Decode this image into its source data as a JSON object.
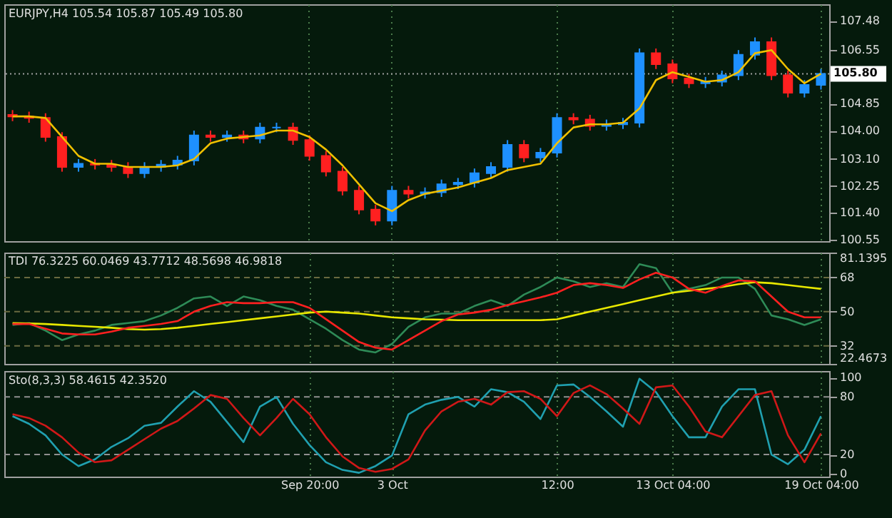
{
  "chart_data": [
    {
      "type": "candlestick",
      "title": "EURJPY,H4  105.54 105.87 105.49 105.80",
      "tick_labels": "y",
      "grid": "x",
      "categories": [
        null,
        null,
        null,
        null,
        null,
        null,
        null,
        null,
        null,
        null,
        null,
        null,
        null,
        null,
        null,
        null,
        null,
        null,
        null,
        null,
        null,
        null,
        null,
        null,
        null,
        null,
        null,
        null,
        null,
        null,
        null,
        null,
        null,
        null,
        null,
        null,
        null,
        null,
        null,
        null,
        null,
        null,
        null,
        null,
        null,
        null,
        null,
        null,
        null,
        null
      ],
      "ohlc": [
        [
          104.5,
          104.65,
          104.3,
          104.45
        ],
        [
          104.45,
          104.6,
          104.25,
          104.4
        ],
        [
          104.4,
          104.55,
          103.65,
          103.8
        ],
        [
          103.8,
          103.95,
          102.7,
          102.85
        ],
        [
          102.85,
          103.1,
          102.7,
          102.95
        ],
        [
          102.95,
          103.1,
          102.77,
          102.92
        ],
        [
          102.92,
          103.07,
          102.7,
          102.85
        ],
        [
          102.85,
          103.0,
          102.5,
          102.65
        ],
        [
          102.65,
          103.0,
          102.5,
          102.85
        ],
        [
          102.85,
          103.07,
          102.7,
          102.92
        ],
        [
          102.92,
          103.2,
          102.77,
          103.05
        ],
        [
          103.05,
          104.0,
          102.9,
          103.85
        ],
        [
          103.85,
          104.0,
          103.65,
          103.8
        ],
        [
          103.8,
          104.0,
          103.65,
          103.85
        ],
        [
          103.85,
          104.0,
          103.6,
          103.75
        ],
        [
          103.75,
          104.25,
          103.6,
          104.1
        ],
        [
          104.1,
          104.25,
          103.95,
          104.1
        ],
        [
          104.1,
          104.25,
          103.55,
          103.7
        ],
        [
          103.7,
          103.85,
          103.05,
          103.2
        ],
        [
          103.2,
          103.35,
          102.55,
          102.7
        ],
        [
          102.7,
          102.85,
          101.95,
          102.1
        ],
        [
          102.1,
          102.25,
          101.35,
          101.5
        ],
        [
          101.5,
          101.65,
          101.0,
          101.15
        ],
        [
          101.15,
          102.25,
          101.0,
          102.1
        ],
        [
          102.1,
          102.25,
          101.85,
          102.0
        ],
        [
          102.0,
          102.2,
          101.85,
          102.05
        ],
        [
          102.05,
          102.45,
          101.9,
          102.3
        ],
        [
          102.3,
          102.5,
          102.15,
          102.35
        ],
        [
          102.35,
          102.8,
          102.2,
          102.65
        ],
        [
          102.65,
          103.0,
          102.5,
          102.85
        ],
        [
          102.85,
          103.7,
          102.7,
          103.55
        ],
        [
          103.55,
          103.7,
          103.0,
          103.15
        ],
        [
          103.15,
          103.45,
          103.0,
          103.3
        ],
        [
          103.3,
          104.55,
          103.15,
          104.4
        ],
        [
          104.4,
          104.55,
          104.2,
          104.35
        ],
        [
          104.35,
          104.5,
          104.0,
          104.15
        ],
        [
          104.15,
          104.35,
          104.0,
          104.2
        ],
        [
          104.2,
          104.4,
          104.05,
          104.25
        ],
        [
          104.25,
          106.6,
          104.1,
          106.45
        ],
        [
          106.45,
          106.6,
          105.95,
          106.1
        ],
        [
          106.1,
          106.25,
          105.5,
          105.65
        ],
        [
          105.65,
          105.8,
          105.35,
          105.5
        ],
        [
          105.5,
          105.7,
          105.35,
          105.55
        ],
        [
          105.55,
          105.9,
          105.4,
          105.75
        ],
        [
          105.75,
          106.55,
          105.6,
          106.4
        ],
        [
          106.4,
          106.95,
          106.25,
          106.8
        ],
        [
          106.8,
          106.95,
          105.6,
          105.75
        ],
        [
          105.75,
          105.9,
          105.05,
          105.2
        ],
        [
          105.2,
          105.6,
          105.05,
          105.45
        ],
        [
          105.45,
          105.95,
          105.3,
          105.8
        ]
      ],
      "colors": [
        "#ff2020",
        "#ff2020",
        "#ff2020",
        "#ff2020",
        "#1e90ff",
        "#ff2020",
        "#ff2020",
        "#ff2020",
        "#1e90ff",
        "#1e90ff",
        "#1e90ff",
        "#1e90ff",
        "#ff2020",
        "#1e90ff",
        "#ff2020",
        "#1e90ff",
        "#1e90ff",
        "#ff2020",
        "#ff2020",
        "#ff2020",
        "#ff2020",
        "#ff2020",
        "#ff2020",
        "#1e90ff",
        "#ff2020",
        "#1e90ff",
        "#1e90ff",
        "#1e90ff",
        "#1e90ff",
        "#1e90ff",
        "#1e90ff",
        "#ff2020",
        "#1e90ff",
        "#1e90ff",
        "#ff2020",
        "#ff2020",
        "#1e90ff",
        "#1e90ff",
        "#1e90ff",
        "#ff2020",
        "#ff2020",
        "#ff2020",
        "#1e90ff",
        "#1e90ff",
        "#1e90ff",
        "#1e90ff",
        "#ff2020",
        "#ff2020",
        "#1e90ff",
        "#1e90ff"
      ],
      "series": [
        {
          "type": "line",
          "color": "#f0c000",
          "values": [
            104.45,
            104.45,
            104.4,
            103.8,
            103.2,
            102.95,
            102.95,
            102.85,
            102.85,
            102.85,
            102.9,
            103.1,
            103.6,
            103.75,
            103.8,
            103.85,
            104.0,
            104.0,
            103.8,
            103.4,
            102.9,
            102.3,
            101.7,
            101.45,
            101.8,
            102.0,
            102.1,
            102.2,
            102.35,
            102.5,
            102.75,
            102.85,
            102.95,
            103.6,
            104.1,
            104.2,
            104.2,
            104.25,
            104.7,
            105.6,
            105.85,
            105.7,
            105.55,
            105.6,
            105.85,
            106.45,
            106.55,
            105.95,
            105.5,
            105.8
          ]
        }
      ],
      "ylim": [
        100.5,
        108.0
      ],
      "yticks": [
        100.55,
        {
          "value": 101.4,
          "label": "101.40"
        },
        102.25,
        {
          "value": 103.1,
          "label": "103.10"
        },
        {
          "value": 104,
          "label": "104.00"
        },
        104.85,
        106.55,
        107.48
      ],
      "ref_lines": [
        {
          "axis": "y",
          "value": 105.8,
          "label": "105.80",
          "color": "#a0a0a0",
          "line_style": "dotted"
        }
      ],
      "legend": false
    },
    {
      "type": "line",
      "title": "TDI 76.3225 60.0469 43.7712 48.5698 46.9818",
      "tick_labels": "y",
      "marker": "none",
      "grid": "x",
      "categories": [
        null,
        null,
        null,
        null,
        null,
        null,
        null,
        null,
        null,
        null,
        null,
        null,
        null,
        null,
        null,
        null,
        null,
        null,
        null,
        null,
        null,
        null,
        null,
        null,
        null,
        null,
        null,
        null,
        null,
        null,
        null,
        null,
        null,
        null,
        null,
        null,
        null,
        null,
        null,
        null,
        null,
        null,
        null,
        null,
        null,
        null,
        null,
        null,
        null,
        null
      ],
      "series": [
        {
          "color": "#2e8b57",
          "values": [
            43,
            44,
            40,
            35,
            38,
            40,
            43,
            44,
            45,
            48,
            52,
            57,
            58,
            53,
            58,
            56,
            53,
            51,
            46,
            41,
            35,
            30,
            28.5,
            33,
            42,
            47,
            49,
            49,
            53,
            56,
            53,
            59,
            63,
            68,
            66,
            63,
            65,
            63,
            75,
            73,
            60,
            62,
            64,
            68,
            68,
            62,
            48,
            46,
            43,
            46
          ]
        },
        {
          "color": "#e8e800",
          "values": [
            44,
            43.8,
            43.5,
            43,
            42.5,
            42,
            41.5,
            40.8,
            40.5,
            40.8,
            41.5,
            42.5,
            43.5,
            44.5,
            45.5,
            46.5,
            47.5,
            48.5,
            49.5,
            50,
            49.5,
            49,
            48,
            47,
            46.5,
            46,
            45.8,
            45.5,
            45.5,
            45.5,
            45.5,
            45.5,
            45.5,
            46,
            48,
            50,
            52,
            54,
            56,
            58,
            60,
            61,
            62,
            63,
            64.5,
            65.5,
            65,
            64,
            63,
            62
          ]
        },
        {
          "color": "#ff2020",
          "values": [
            43.5,
            43.5,
            41,
            38.5,
            38,
            38,
            39.5,
            41.5,
            42.5,
            43.5,
            45,
            50,
            53,
            55,
            54.5,
            54.5,
            55,
            55,
            52,
            46,
            40,
            34,
            31,
            30,
            35,
            40,
            45,
            48.5,
            49.5,
            51,
            53.5,
            55.5,
            57.5,
            60,
            64,
            65,
            64,
            62.5,
            67,
            70.5,
            68,
            62,
            60,
            63.5,
            66.5,
            66,
            58,
            50,
            47,
            47
          ]
        }
      ],
      "ylim": [
        22.4673,
        81.1395
      ],
      "yticks": [
        22.4673,
        32,
        50,
        68,
        81.1395
      ],
      "ref_lines": [
        {
          "axis": "y",
          "value": 32,
          "color": "#6a6a40",
          "line_style": "dashed"
        },
        {
          "axis": "y",
          "value": 50,
          "color": "#6a6a40",
          "line_style": "dashed"
        },
        {
          "axis": "y",
          "value": 68,
          "color": "#6a6a40",
          "line_style": "dashed"
        }
      ],
      "legend": false
    },
    {
      "type": "line",
      "title": "Sto(8,3,3) 58.4615 42.3520",
      "marker": "none",
      "grid": "x",
      "categories": [
        null,
        null,
        null,
        null,
        null,
        null,
        null,
        null,
        null,
        null,
        null,
        null,
        null,
        null,
        null,
        null,
        null,
        null,
        "Sep 20:00",
        null,
        null,
        null,
        null,
        "3 Oct",
        null,
        null,
        null,
        null,
        null,
        null,
        null,
        null,
        null,
        "12:00",
        null,
        null,
        null,
        null,
        null,
        null,
        "13 Oct 04:00",
        null,
        null,
        null,
        null,
        null,
        null,
        null,
        null,
        "19 Oct 04:00"
      ],
      "series": [
        {
          "color": "#20a0b0",
          "values": [
            60,
            52,
            40,
            20,
            8,
            15,
            28,
            37,
            50,
            53,
            70,
            86,
            75,
            54,
            33,
            70,
            80,
            52,
            30,
            12,
            4,
            1,
            8,
            19,
            62,
            72,
            77,
            80,
            70,
            88,
            85,
            75,
            57,
            92,
            93,
            80,
            65,
            49,
            99,
            85,
            60,
            38,
            38,
            70,
            88,
            88,
            20,
            10,
            25,
            60
          ]
        },
        {
          "color": "#d01818",
          "values": [
            62,
            58,
            50,
            38,
            22,
            12,
            14,
            25,
            36,
            47,
            55,
            68,
            82,
            78,
            58,
            40,
            58,
            78,
            62,
            38,
            18,
            6,
            2,
            5,
            15,
            45,
            65,
            75,
            78,
            72,
            85,
            86,
            78,
            60,
            84,
            92,
            83,
            68,
            52,
            90,
            92,
            70,
            44,
            38,
            60,
            82,
            86,
            40,
            12,
            42
          ]
        }
      ],
      "ylim": [
        -3,
        107
      ],
      "yticks": [
        0,
        20,
        80,
        100
      ],
      "ref_lines": [
        {
          "axis": "y",
          "value": 20,
          "color": "#909090",
          "line_style": "dashed"
        },
        {
          "axis": "y",
          "value": 80,
          "color": "#909090",
          "line_style": "dashed"
        }
      ],
      "legend": false
    }
  ]
}
